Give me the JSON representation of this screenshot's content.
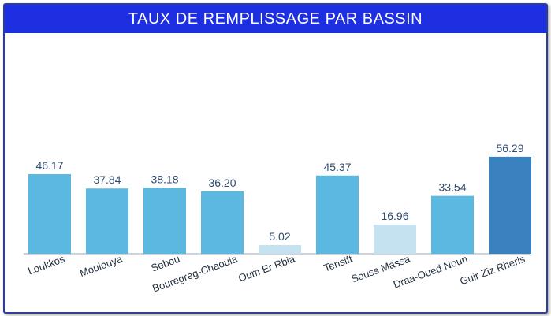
{
  "chart_data": {
    "type": "bar",
    "title": "TAUX DE REMPLISSAGE PAR BASSIN",
    "categories": [
      "Loukkos",
      "Moulouya",
      "Sebou",
      "Bouregreg-Chaouia",
      "Oum Er Rbia",
      "Tensift",
      "Souss Massa",
      "Draa-Oued Noun",
      "Guir Ziz Rheris"
    ],
    "values": [
      46.17,
      37.84,
      38.18,
      36.2,
      5.02,
      45.37,
      16.96,
      33.54,
      56.29
    ],
    "value_labels": [
      "46.17",
      "37.84",
      "38.18",
      "36.20",
      "5.02",
      "45.37",
      "16.96",
      "33.54",
      "56.29"
    ],
    "bar_colors": [
      "#5bb8e0",
      "#5bb8e0",
      "#5bb8e0",
      "#5bb8e0",
      "#c5e2f0",
      "#5bb8e0",
      "#c5e2f0",
      "#5bb8e0",
      "#3a82bf"
    ],
    "ylim": [
      0,
      60
    ],
    "grid": false,
    "legend": "none",
    "xlabel": "",
    "ylabel": ""
  },
  "colors": {
    "header_bg": "#1d2fe0",
    "frame_border": "#2c3e9a",
    "value_text": "#2e4a6e"
  }
}
